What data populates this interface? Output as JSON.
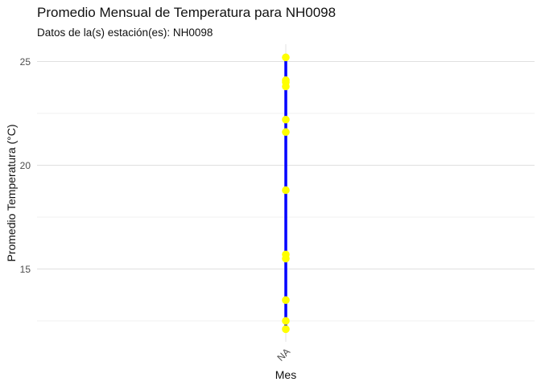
{
  "chart_data": {
    "type": "line",
    "title": "Promedio Mensual de Temperatura para NH0098",
    "subtitle": "Datos de la(s) estación(es): NH0098",
    "xlabel": "Mes",
    "ylabel": "Promedio Temperatura (°C)",
    "categories": [
      "NA"
    ],
    "y_ticks": [
      15,
      20,
      25
    ],
    "ylim": [
      11.7,
      25.9
    ],
    "grid": true,
    "series": [
      {
        "x": [
          "NA",
          "NA",
          "NA",
          "NA",
          "NA",
          "NA",
          "NA",
          "NA",
          "NA",
          "NA",
          "NA",
          "NA"
        ],
        "values": [
          12.1,
          12.5,
          13.5,
          15.5,
          15.7,
          18.8,
          21.6,
          22.2,
          23.8,
          24.0,
          24.1,
          25.2
        ],
        "line_color": "#0000ff",
        "point_color": "#ffff00"
      }
    ]
  }
}
